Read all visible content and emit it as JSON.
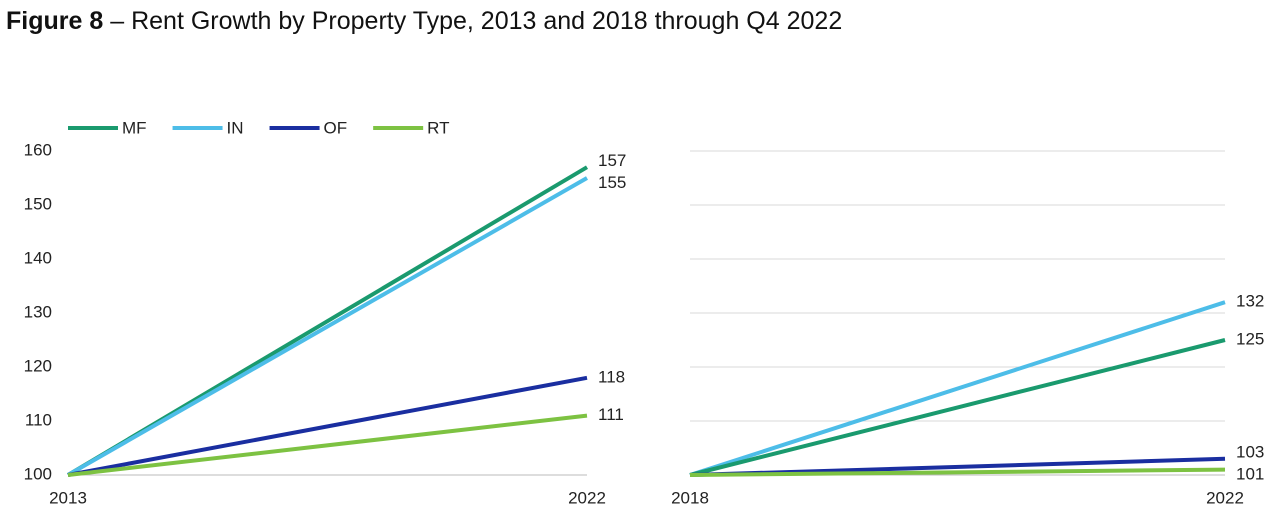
{
  "figure_label": "Figure 8",
  "title": "– Rent Growth by Property Type, 2013 and 2018 through Q4 2022",
  "chart_data": [
    {
      "type": "line",
      "categories": [
        "2013",
        "2022"
      ],
      "series": [
        {
          "name": "MF",
          "color": "#1a9a6e",
          "values": [
            100,
            157
          ]
        },
        {
          "name": "IN",
          "color": "#4dbde8",
          "values": [
            100,
            155
          ]
        },
        {
          "name": "OF",
          "color": "#1a2ea0",
          "values": [
            100,
            118
          ]
        },
        {
          "name": "RT",
          "color": "#7dc242",
          "values": [
            100,
            111
          ]
        }
      ],
      "ylim": [
        100,
        160
      ],
      "yticks": [
        100,
        110,
        120,
        130,
        140,
        150,
        160
      ],
      "grid": false,
      "legend": "top",
      "ytick_labels": true
    },
    {
      "type": "line",
      "categories": [
        "2018",
        "2022"
      ],
      "series": [
        {
          "color": "#4dbde8",
          "values": [
            100,
            132
          ]
        },
        {
          "color": "#1a9a6e",
          "values": [
            100,
            125
          ]
        },
        {
          "color": "#1a2ea0",
          "values": [
            100,
            103
          ]
        },
        {
          "color": "#7dc242",
          "values": [
            100,
            101
          ]
        }
      ],
      "ylim": [
        100,
        160
      ],
      "yticks": [
        100,
        110,
        120,
        130,
        140,
        150,
        160
      ],
      "grid": true,
      "ytick_labels": false
    }
  ]
}
